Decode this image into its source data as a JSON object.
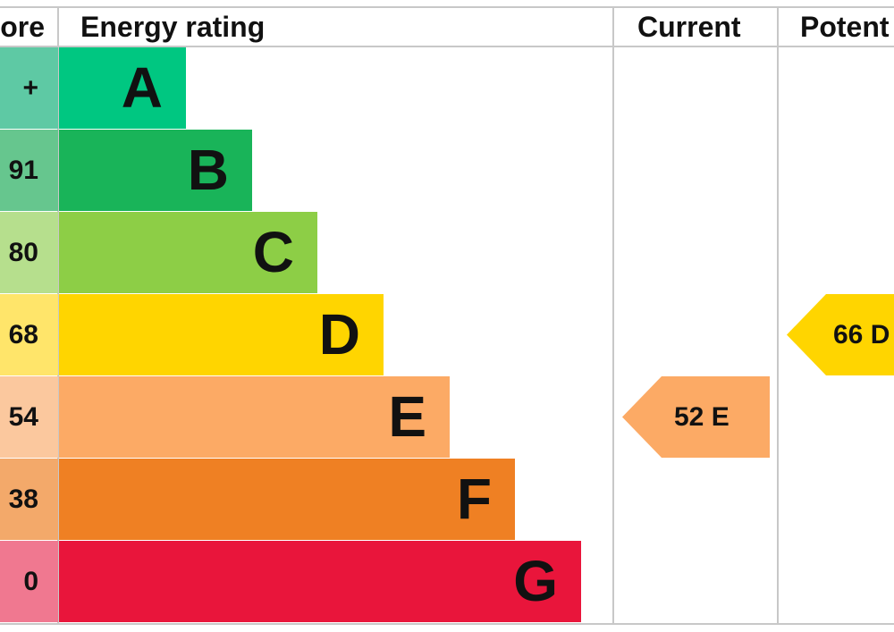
{
  "chart_data": {
    "type": "bar",
    "header": {
      "score": "ore",
      "rating": "Energy rating",
      "current": "Current",
      "potential": "Potent"
    },
    "bands": [
      {
        "score": "+",
        "letter": "A",
        "color": "#00c781",
        "score_bg": "#5ec9a4"
      },
      {
        "score": "91",
        "letter": "B",
        "color": "#19b459",
        "score_bg": "#66c68e"
      },
      {
        "score": "80",
        "letter": "C",
        "color": "#8dce46",
        "score_bg": "#b6df8d"
      },
      {
        "score": "68",
        "letter": "D",
        "color": "#ffd500",
        "score_bg": "#ffe56a"
      },
      {
        "score": "54",
        "letter": "E",
        "color": "#fcaa65",
        "score_bg": "#fbc89e"
      },
      {
        "score": "38",
        "letter": "F",
        "color": "#ef8023",
        "score_bg": "#f3a96a"
      },
      {
        "score": "0",
        "letter": "G",
        "color": "#e9153b",
        "score_bg": "#f07890"
      }
    ],
    "current": {
      "value": 52,
      "band": "E",
      "label": "52  E",
      "color": "#fcaa65"
    },
    "potential": {
      "value": 66,
      "band": "D",
      "label": "66  D",
      "color": "#ffd500"
    }
  }
}
